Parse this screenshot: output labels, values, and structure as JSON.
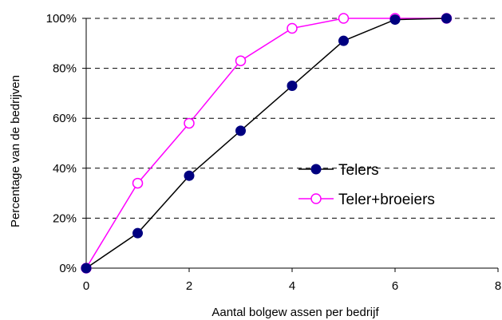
{
  "chart_data": {
    "type": "line",
    "xlabel": "Aantal bolgew assen per bedrijf",
    "ylabel": "Percentage van de bedrijven",
    "xlim": [
      0,
      8
    ],
    "ylim": [
      0,
      100
    ],
    "xticks": [
      "0",
      "2",
      "4",
      "6",
      "8"
    ],
    "yticks": [
      "0%",
      "20%",
      "40%",
      "60%",
      "80%",
      "100%"
    ],
    "grid": "horizontal-dashed",
    "legend_position": "right",
    "series": [
      {
        "name": "Telers",
        "color": "#000080",
        "line_color": "#000000",
        "marker": "filled-circle",
        "x": [
          0,
          1,
          2,
          3,
          4,
          5,
          6,
          7
        ],
        "y": [
          0,
          14,
          37,
          55,
          73,
          91,
          99.5,
          100
        ]
      },
      {
        "name": "Teler+broeiers",
        "color": "#ff00ff",
        "line_color": "#ff00ff",
        "marker": "open-circle",
        "x": [
          0,
          1,
          2,
          3,
          4,
          5,
          6,
          7
        ],
        "y": [
          0,
          34,
          58,
          83,
          96,
          100,
          100,
          100
        ]
      }
    ]
  }
}
